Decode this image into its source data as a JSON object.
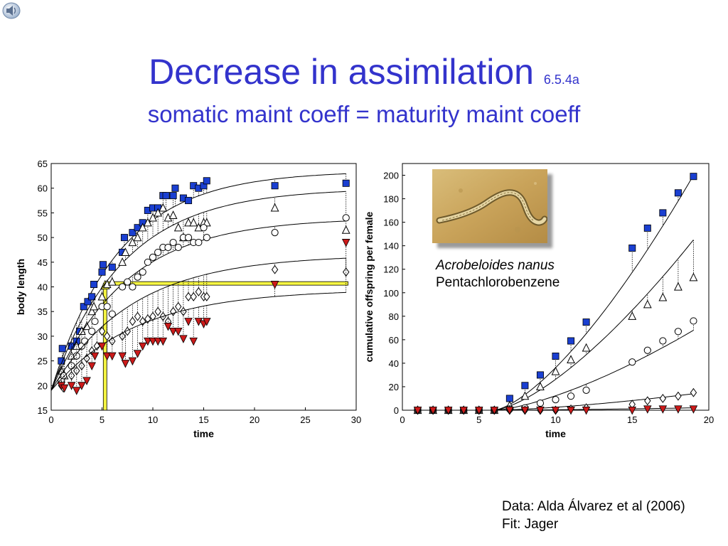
{
  "header": {
    "title": "Decrease in assimilation",
    "version": "6.5.4a",
    "subtitle": "somatic maint coeff = maturity maint coeff"
  },
  "icons": {
    "speaker": "speaker-icon"
  },
  "caption": {
    "species": "Acrobeloides nanus",
    "chemical": "Pentachlorobenzene"
  },
  "credits": {
    "data": "Data: Alda Álvarez et al (2006)",
    "fit": "Fit: Jager"
  },
  "colors": {
    "title": "#3333cc",
    "blue_series": "#1a3fd1",
    "red_series": "#cc1a1a",
    "highlight": "#f5f542"
  },
  "chart_data": [
    {
      "type": "scatter",
      "xlabel": "time",
      "ylabel": "body length",
      "xlim": [
        0,
        30
      ],
      "ylim": [
        15,
        65
      ],
      "xticks": [
        0,
        5,
        10,
        15,
        20,
        25,
        30
      ],
      "yticks": [
        15,
        20,
        25,
        30,
        35,
        40,
        45,
        50,
        55,
        60,
        65
      ],
      "grid": false,
      "annotations": {
        "highlight_length": 40.7,
        "highlight_time": 5.3
      },
      "series": [
        {
          "marker": "square-blue",
          "fit_asymptote": 63.5,
          "fit_rate": 0.15,
          "points": [
            [
              1,
              25
            ],
            [
              1.1,
              27.5
            ],
            [
              2,
              28
            ],
            [
              2.5,
              29
            ],
            [
              2.8,
              31
            ],
            [
              3.2,
              36
            ],
            [
              3.6,
              37
            ],
            [
              4,
              38
            ],
            [
              4.2,
              40.5
            ],
            [
              5,
              43
            ],
            [
              5.1,
              44.5
            ],
            [
              6,
              44
            ],
            [
              7,
              47
            ],
            [
              7.2,
              50
            ],
            [
              8,
              51
            ],
            [
              8.5,
              52
            ],
            [
              9,
              53
            ],
            [
              9.5,
              55.5
            ],
            [
              10,
              56
            ],
            [
              10.5,
              56
            ],
            [
              11,
              58.5
            ],
            [
              11.3,
              58.5
            ],
            [
              12,
              58.5
            ],
            [
              12.2,
              60
            ],
            [
              13,
              58
            ],
            [
              13.5,
              57.5
            ],
            [
              14,
              60.5
            ],
            [
              14.5,
              60
            ],
            [
              15,
              60.5
            ],
            [
              15.3,
              61.5
            ],
            [
              22,
              60.5
            ],
            [
              29,
              61
            ]
          ]
        },
        {
          "marker": "triangle-open",
          "fit_asymptote": 60,
          "fit_rate": 0.142,
          "points": [
            [
              1,
              23
            ],
            [
              1.3,
              22
            ],
            [
              2,
              26
            ],
            [
              2.5,
              28
            ],
            [
              3,
              31
            ],
            [
              3.5,
              32
            ],
            [
              4,
              35
            ],
            [
              4.2,
              36
            ],
            [
              5,
              38
            ],
            [
              5.5,
              40.5
            ],
            [
              6,
              41
            ],
            [
              7,
              45
            ],
            [
              7.3,
              47
            ],
            [
              8,
              49
            ],
            [
              8.5,
              50
            ],
            [
              9,
              52
            ],
            [
              9.5,
              53
            ],
            [
              10,
              54
            ],
            [
              10.5,
              55
            ],
            [
              11,
              56
            ],
            [
              11.5,
              54
            ],
            [
              12,
              54.5
            ],
            [
              12.5,
              52
            ],
            [
              13,
              50
            ],
            [
              13.5,
              53
            ],
            [
              14,
              53
            ],
            [
              14.5,
              52
            ],
            [
              15,
              53
            ],
            [
              15.3,
              53
            ],
            [
              22,
              56
            ],
            [
              29,
              51.5
            ]
          ]
        },
        {
          "marker": "circle-open",
          "fit_asymptote": 54,
          "fit_rate": 0.137,
          "points": [
            [
              1,
              21
            ],
            [
              1.2,
              22
            ],
            [
              2,
              24
            ],
            [
              2.5,
              26
            ],
            [
              3,
              28
            ],
            [
              3.3,
              29
            ],
            [
              4,
              31
            ],
            [
              4.3,
              33
            ],
            [
              5,
              36
            ],
            [
              5.5,
              36
            ],
            [
              6,
              34.5
            ],
            [
              7,
              40
            ],
            [
              7.5,
              41
            ],
            [
              8,
              40
            ],
            [
              8.5,
              42
            ],
            [
              9,
              43
            ],
            [
              9.5,
              45
            ],
            [
              10,
              46
            ],
            [
              10.5,
              47
            ],
            [
              11,
              48
            ],
            [
              11.5,
              48
            ],
            [
              12,
              49
            ],
            [
              12.5,
              48
            ],
            [
              13,
              50
            ],
            [
              13.5,
              50
            ],
            [
              14,
              49
            ],
            [
              14.5,
              49
            ],
            [
              15,
              52
            ],
            [
              15.3,
              50
            ],
            [
              22,
              51
            ],
            [
              29,
              54
            ]
          ]
        },
        {
          "marker": "diamond-open",
          "fit_asymptote": 46.5,
          "fit_rate": 0.127,
          "points": [
            [
              1,
              20
            ],
            [
              1.2,
              19.5
            ],
            [
              2,
              22
            ],
            [
              2.5,
              23
            ],
            [
              3,
              24
            ],
            [
              3.5,
              25.5
            ],
            [
              4,
              27
            ],
            [
              4.5,
              28
            ],
            [
              5,
              31
            ],
            [
              5.5,
              30
            ],
            [
              6,
              29
            ],
            [
              7,
              30
            ],
            [
              7.5,
              31
            ],
            [
              8,
              33
            ],
            [
              8.5,
              34
            ],
            [
              9,
              33
            ],
            [
              9.5,
              33.5
            ],
            [
              10,
              34
            ],
            [
              10.5,
              35
            ],
            [
              11,
              34
            ],
            [
              11.5,
              33
            ],
            [
              12,
              35
            ],
            [
              12.5,
              36
            ],
            [
              13,
              35
            ],
            [
              13.5,
              38
            ],
            [
              14,
              38
            ],
            [
              14.5,
              39
            ],
            [
              15,
              38
            ],
            [
              15.3,
              38
            ],
            [
              22,
              43.5
            ],
            [
              29,
              43
            ]
          ]
        },
        {
          "marker": "triangle-down-red",
          "fit_asymptote": 39.5,
          "fit_rate": 0.12,
          "points": [
            [
              1,
              20
            ],
            [
              1.3,
              19.5
            ],
            [
              2,
              20
            ],
            [
              2.5,
              19
            ],
            [
              3,
              20
            ],
            [
              3.5,
              21
            ],
            [
              4,
              24
            ],
            [
              4.3,
              26
            ],
            [
              5,
              28
            ],
            [
              5.5,
              26
            ],
            [
              6,
              26
            ],
            [
              7,
              26
            ],
            [
              7.3,
              24.5
            ],
            [
              8,
              25
            ],
            [
              8.5,
              26.5
            ],
            [
              9,
              28
            ],
            [
              9.5,
              29
            ],
            [
              10,
              29
            ],
            [
              10.5,
              29
            ],
            [
              11,
              29
            ],
            [
              11.5,
              32
            ],
            [
              12,
              31
            ],
            [
              12.5,
              31
            ],
            [
              13,
              29.5
            ],
            [
              13.5,
              33
            ],
            [
              14,
              29
            ],
            [
              14.5,
              33
            ],
            [
              15,
              32.5
            ],
            [
              15.3,
              33
            ],
            [
              22,
              40.5
            ],
            [
              29,
              49
            ]
          ]
        }
      ]
    },
    {
      "type": "scatter",
      "xlabel": "time",
      "ylabel": "cumulative offspring per female",
      "xlim": [
        0,
        20
      ],
      "ylim": [
        0,
        210
      ],
      "xticks": [
        0,
        5,
        10,
        15,
        20
      ],
      "yticks": [
        0,
        20,
        40,
        60,
        80,
        100,
        120,
        140,
        160,
        180,
        200
      ],
      "grid": false,
      "series": [
        {
          "marker": "square-blue",
          "fit_end": 200,
          "points": [
            [
              1,
              0
            ],
            [
              2,
              0
            ],
            [
              3,
              0
            ],
            [
              4,
              0
            ],
            [
              5,
              0
            ],
            [
              6,
              0
            ],
            [
              7,
              10
            ],
            [
              8,
              21
            ],
            [
              9,
              30
            ],
            [
              10,
              46
            ],
            [
              11,
              59
            ],
            [
              12,
              75
            ],
            [
              15,
              138
            ],
            [
              16,
              155
            ],
            [
              17,
              168
            ],
            [
              18,
              185
            ],
            [
              19,
              199
            ]
          ]
        },
        {
          "marker": "triangle-open",
          "fit_end": 145,
          "points": [
            [
              1,
              0
            ],
            [
              2,
              0
            ],
            [
              3,
              0
            ],
            [
              4,
              0
            ],
            [
              5,
              0
            ],
            [
              6,
              0
            ],
            [
              7,
              4
            ],
            [
              8,
              12
            ],
            [
              9,
              20
            ],
            [
              10,
              33
            ],
            [
              11,
              43
            ],
            [
              12,
              53
            ],
            [
              15,
              80
            ],
            [
              16,
              90
            ],
            [
              17,
              96
            ],
            [
              18,
              105
            ],
            [
              19,
              113
            ]
          ]
        },
        {
          "marker": "circle-open",
          "fit_end": 68,
          "points": [
            [
              1,
              0
            ],
            [
              2,
              0
            ],
            [
              3,
              0
            ],
            [
              4,
              0
            ],
            [
              5,
              0
            ],
            [
              6,
              0
            ],
            [
              7,
              1
            ],
            [
              8,
              2
            ],
            [
              9,
              6
            ],
            [
              10,
              9
            ],
            [
              11,
              12
            ],
            [
              12,
              17
            ],
            [
              15,
              41
            ],
            [
              16,
              51
            ],
            [
              17,
              59
            ],
            [
              18,
              67
            ],
            [
              19,
              76
            ]
          ]
        },
        {
          "marker": "diamond-open",
          "fit_end": 14,
          "points": [
            [
              1,
              0
            ],
            [
              2,
              0
            ],
            [
              3,
              0
            ],
            [
              4,
              0
            ],
            [
              5,
              0
            ],
            [
              6,
              0
            ],
            [
              7,
              0
            ],
            [
              8,
              0
            ],
            [
              9,
              0
            ],
            [
              10,
              0
            ],
            [
              11,
              1
            ],
            [
              12,
              2
            ],
            [
              15,
              5
            ],
            [
              16,
              8
            ],
            [
              17,
              10
            ],
            [
              18,
              12
            ],
            [
              19,
              15
            ]
          ]
        },
        {
          "marker": "triangle-down-red",
          "fit_end": 2,
          "points": [
            [
              1,
              0
            ],
            [
              2,
              0
            ],
            [
              3,
              0
            ],
            [
              4,
              0
            ],
            [
              5,
              0
            ],
            [
              6,
              0
            ],
            [
              7,
              0
            ],
            [
              8,
              0
            ],
            [
              9,
              0
            ],
            [
              10,
              0
            ],
            [
              11,
              0
            ],
            [
              12,
              0
            ],
            [
              15,
              0
            ],
            [
              16,
              1
            ],
            [
              17,
              1
            ],
            [
              18,
              1
            ],
            [
              19,
              1
            ]
          ]
        }
      ]
    }
  ]
}
